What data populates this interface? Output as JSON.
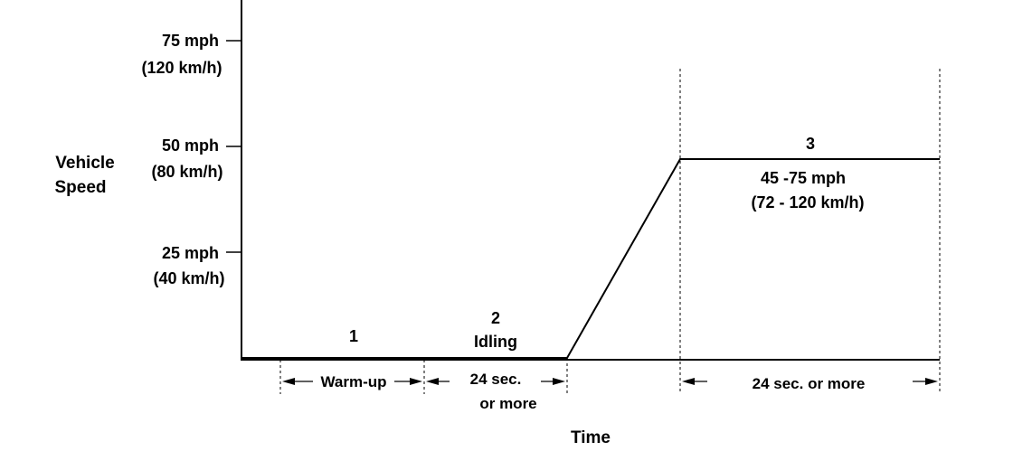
{
  "axis": {
    "y_label_line1": "Vehicle",
    "y_label_line2": "Speed",
    "x_label": "Time",
    "ticks": [
      {
        "mph": "75 mph",
        "kmh": "(120 km/h)"
      },
      {
        "mph": "50 mph",
        "kmh": "(80 km/h)"
      },
      {
        "mph": "25 mph",
        "kmh": "(40 km/h)"
      }
    ]
  },
  "phases": {
    "p1_number": "1",
    "p2_number": "2",
    "p2_name": "Idling",
    "p3_number": "3",
    "p3_range_mph": "45 -75 mph",
    "p3_range_kmh": "(72 - 120 km/h)"
  },
  "durations": {
    "warmup": "Warm-up",
    "idle_line1": "24 sec.",
    "idle_line2": "or  more",
    "cruise": "24 sec. or  more"
  }
}
